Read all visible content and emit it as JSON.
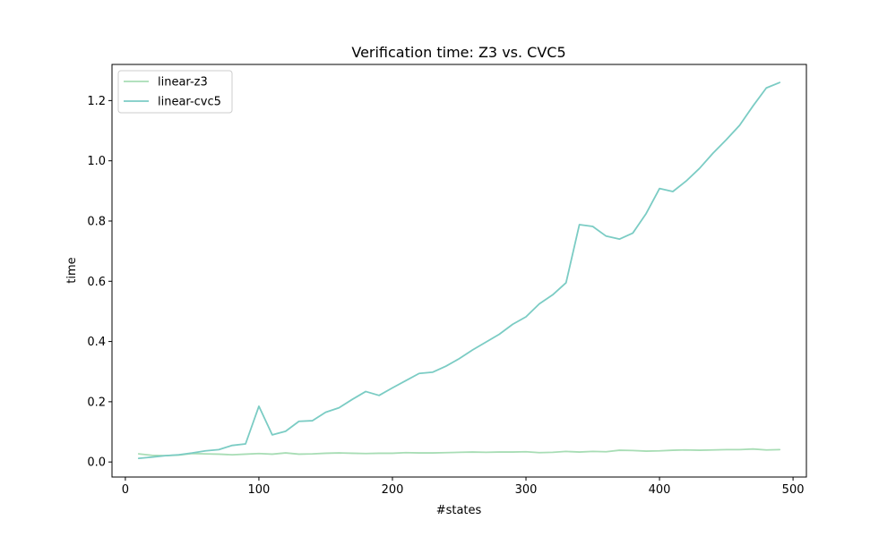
{
  "chart_data": {
    "type": "line",
    "title": "Verification time: Z3 vs. CVC5",
    "xlabel": "#states",
    "ylabel": "time",
    "xlim": [
      -10,
      510
    ],
    "ylim": [
      -0.05,
      1.32
    ],
    "xticks": [
      0,
      100,
      200,
      300,
      400,
      500
    ],
    "xtick_labels": [
      "0",
      "100",
      "200",
      "300",
      "400",
      "500"
    ],
    "yticks": [
      0.0,
      0.2,
      0.4,
      0.6,
      0.8,
      1.0,
      1.2
    ],
    "ytick_labels": [
      "0.0",
      "0.2",
      "0.4",
      "0.6",
      "0.8",
      "1.0",
      "1.2"
    ],
    "grid": false,
    "legend_position": "top-left",
    "x": [
      10,
      20,
      30,
      40,
      50,
      60,
      70,
      80,
      90,
      100,
      110,
      120,
      130,
      140,
      150,
      160,
      170,
      180,
      190,
      200,
      210,
      220,
      230,
      240,
      250,
      260,
      270,
      280,
      290,
      300,
      310,
      320,
      330,
      340,
      350,
      360,
      370,
      380,
      390,
      400,
      410,
      420,
      430,
      440,
      450,
      460,
      470,
      480,
      490
    ],
    "series": [
      {
        "name": "linear-z3",
        "color": "#a8ddb5",
        "values": [
          0.027,
          0.022,
          0.021,
          0.023,
          0.028,
          0.027,
          0.026,
          0.024,
          0.026,
          0.028,
          0.026,
          0.03,
          0.026,
          0.027,
          0.029,
          0.03,
          0.029,
          0.028,
          0.029,
          0.029,
          0.031,
          0.03,
          0.03,
          0.031,
          0.032,
          0.033,
          0.032,
          0.033,
          0.033,
          0.034,
          0.031,
          0.032,
          0.035,
          0.033,
          0.035,
          0.034,
          0.039,
          0.038,
          0.036,
          0.037,
          0.039,
          0.04,
          0.039,
          0.04,
          0.041,
          0.041,
          0.043,
          0.04,
          0.041
        ]
      },
      {
        "name": "linear-cvc5",
        "color": "#7bccc4",
        "values": [
          0.012,
          0.016,
          0.021,
          0.024,
          0.03,
          0.037,
          0.041,
          0.055,
          0.06,
          0.185,
          0.09,
          0.102,
          0.135,
          0.137,
          0.165,
          0.18,
          0.208,
          0.234,
          0.221,
          0.246,
          0.27,
          0.294,
          0.298,
          0.318,
          0.343,
          0.372,
          0.398,
          0.424,
          0.457,
          0.482,
          0.525,
          0.555,
          0.595,
          0.788,
          0.782,
          0.75,
          0.74,
          0.76,
          0.825,
          0.908,
          0.898,
          0.933,
          0.975,
          1.025,
          1.07,
          1.118,
          1.182,
          1.242,
          1.26
        ]
      }
    ]
  }
}
